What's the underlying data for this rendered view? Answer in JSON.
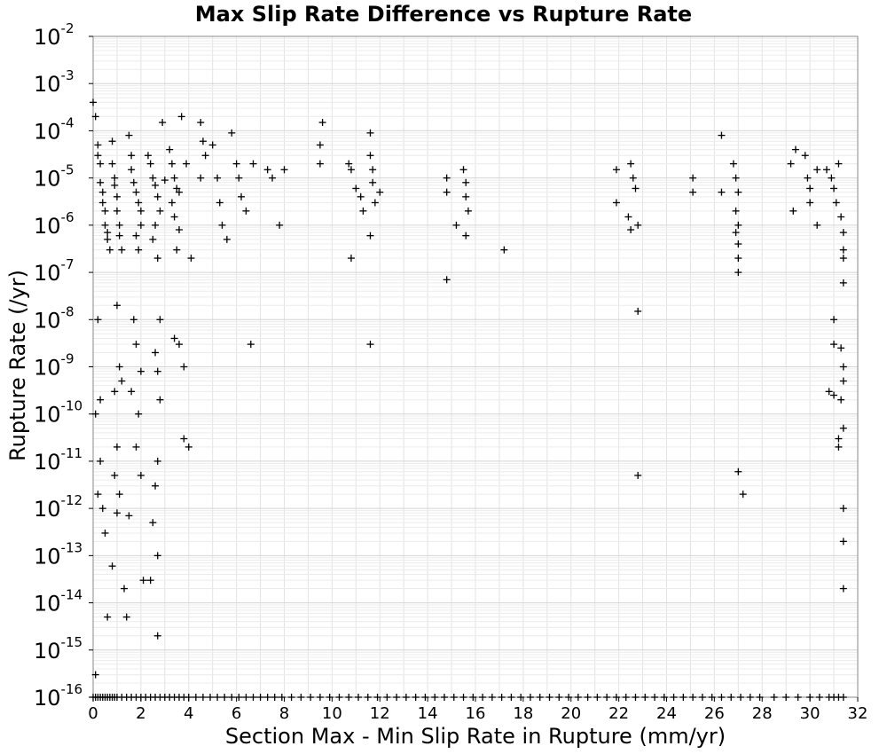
{
  "chart_data": {
    "type": "scatter",
    "title": "Max Slip Rate Difference vs Rupture Rate",
    "xlabel": "Section Max - Min Slip Rate in Rupture (mm/yr)",
    "ylabel": "Rupture Rate (/yr)",
    "xlim": [
      0,
      32
    ],
    "ylim": [
      1e-16,
      0.01
    ],
    "yscale": "log",
    "grid": true,
    "marker": "+",
    "marker_color": "#000000",
    "x_ticks": [
      "0",
      "2",
      "4",
      "6",
      "8",
      "10",
      "12",
      "14",
      "16",
      "18",
      "20",
      "22",
      "24",
      "26",
      "28",
      "30",
      "32"
    ],
    "y_ticks": [
      {
        "base": "10",
        "exp": "-16"
      },
      {
        "base": "10",
        "exp": "-15"
      },
      {
        "base": "10",
        "exp": "-14"
      },
      {
        "base": "10",
        "exp": "-13"
      },
      {
        "base": "10",
        "exp": "-12"
      },
      {
        "base": "10",
        "exp": "-11"
      },
      {
        "base": "10",
        "exp": "-10"
      },
      {
        "base": "10",
        "exp": "-9"
      },
      {
        "base": "10",
        "exp": "-8"
      },
      {
        "base": "10",
        "exp": "-7"
      },
      {
        "base": "10",
        "exp": "-6"
      },
      {
        "base": "10",
        "exp": "-5"
      },
      {
        "base": "10",
        "exp": "-4"
      },
      {
        "base": "10",
        "exp": "-3"
      },
      {
        "base": "10",
        "exp": "-2"
      }
    ],
    "points": [
      [
        0.0,
        0.0004
      ],
      [
        0.1,
        0.0002
      ],
      [
        0.1,
        1e-10
      ],
      [
        0.2,
        5e-05
      ],
      [
        0.2,
        3e-05
      ],
      [
        0.3,
        2e-05
      ],
      [
        0.3,
        8e-06
      ],
      [
        0.4,
        5e-06
      ],
      [
        0.4,
        3e-06
      ],
      [
        0.5,
        2e-06
      ],
      [
        0.5,
        1e-06
      ],
      [
        0.6,
        7e-07
      ],
      [
        0.6,
        5e-07
      ],
      [
        0.7,
        3e-07
      ],
      [
        0.2,
        1e-08
      ],
      [
        0.3,
        2e-10
      ],
      [
        0.3,
        1e-11
      ],
      [
        0.2,
        2e-12
      ],
      [
        0.4,
        1e-12
      ],
      [
        0.5,
        3e-13
      ],
      [
        0.6,
        5e-15
      ],
      [
        0.1,
        3e-16
      ],
      [
        0.8,
        6e-05
      ],
      [
        0.8,
        2e-05
      ],
      [
        0.9,
        1e-05
      ],
      [
        0.9,
        7e-06
      ],
      [
        1.0,
        4e-06
      ],
      [
        1.0,
        2e-06
      ],
      [
        1.1,
        1e-06
      ],
      [
        1.1,
        6e-07
      ],
      [
        1.2,
        3e-07
      ],
      [
        1.0,
        2e-08
      ],
      [
        1.1,
        1e-09
      ],
      [
        1.2,
        5e-10
      ],
      [
        0.9,
        3e-10
      ],
      [
        1.0,
        2e-11
      ],
      [
        0.9,
        5e-12
      ],
      [
        1.1,
        2e-12
      ],
      [
        1.0,
        8e-13
      ],
      [
        0.8,
        6e-14
      ],
      [
        1.3,
        2e-14
      ],
      [
        1.4,
        5e-15
      ],
      [
        1.5,
        8e-05
      ],
      [
        1.6,
        3e-05
      ],
      [
        1.6,
        1.5e-05
      ],
      [
        1.7,
        8e-06
      ],
      [
        1.8,
        5e-06
      ],
      [
        1.9,
        3e-06
      ],
      [
        2.0,
        2e-06
      ],
      [
        2.0,
        1e-06
      ],
      [
        1.8,
        6e-07
      ],
      [
        1.9,
        3e-07
      ],
      [
        1.7,
        1e-08
      ],
      [
        1.8,
        3e-09
      ],
      [
        2.0,
        8e-10
      ],
      [
        1.6,
        3e-10
      ],
      [
        1.9,
        1e-10
      ],
      [
        1.8,
        2e-11
      ],
      [
        2.0,
        5e-12
      ],
      [
        1.5,
        7e-13
      ],
      [
        2.1,
        3e-14
      ],
      [
        2.3,
        3e-05
      ],
      [
        2.4,
        2e-05
      ],
      [
        2.5,
        1e-05
      ],
      [
        2.6,
        7e-06
      ],
      [
        2.7,
        4e-06
      ],
      [
        2.8,
        2e-06
      ],
      [
        2.9,
        0.00015
      ],
      [
        3.0,
        9e-06
      ],
      [
        2.6,
        1e-06
      ],
      [
        2.5,
        5e-07
      ],
      [
        2.7,
        2e-07
      ],
      [
        2.8,
        1e-08
      ],
      [
        2.6,
        2e-09
      ],
      [
        2.7,
        8e-10
      ],
      [
        2.8,
        2e-10
      ],
      [
        2.7,
        1e-11
      ],
      [
        2.6,
        3e-12
      ],
      [
        2.5,
        5e-13
      ],
      [
        2.7,
        1e-13
      ],
      [
        2.4,
        3e-14
      ],
      [
        2.7,
        2e-15
      ],
      [
        3.2,
        4e-05
      ],
      [
        3.3,
        2e-05
      ],
      [
        3.4,
        1e-05
      ],
      [
        3.5,
        6e-06
      ],
      [
        3.6,
        5e-06
      ],
      [
        3.3,
        3e-06
      ],
      [
        3.4,
        1.5e-06
      ],
      [
        3.6,
        8e-07
      ],
      [
        3.5,
        3e-07
      ],
      [
        3.4,
        4e-09
      ],
      [
        3.6,
        3e-09
      ],
      [
        3.8,
        1e-09
      ],
      [
        3.8,
        3e-11
      ],
      [
        4.0,
        2e-11
      ],
      [
        4.1,
        2e-07
      ],
      [
        3.9,
        2e-05
      ],
      [
        3.7,
        0.0002
      ],
      [
        4.5,
        0.00015
      ],
      [
        4.6,
        6e-05
      ],
      [
        4.7,
        3e-05
      ],
      [
        4.5,
        1e-05
      ],
      [
        5.0,
        5e-05
      ],
      [
        5.2,
        1e-05
      ],
      [
        5.3,
        3e-06
      ],
      [
        5.4,
        1e-06
      ],
      [
        5.6,
        5e-07
      ],
      [
        5.8,
        9e-05
      ],
      [
        6.0,
        2e-05
      ],
      [
        6.1,
        1e-05
      ],
      [
        6.2,
        4e-06
      ],
      [
        6.4,
        2e-06
      ],
      [
        6.6,
        3e-09
      ],
      [
        6.7,
        2e-05
      ],
      [
        7.3,
        1.5e-05
      ],
      [
        7.5,
        1e-05
      ],
      [
        7.8,
        1e-06
      ],
      [
        8.0,
        1.5e-05
      ],
      [
        9.6,
        0.00015
      ],
      [
        9.5,
        5e-05
      ],
      [
        9.5,
        2e-05
      ],
      [
        10.7,
        2e-05
      ],
      [
        10.8,
        1.5e-05
      ],
      [
        11.0,
        6e-06
      ],
      [
        11.2,
        4e-06
      ],
      [
        11.3,
        2e-06
      ],
      [
        10.8,
        2e-07
      ],
      [
        11.6,
        9e-05
      ],
      [
        11.6,
        3e-05
      ],
      [
        11.7,
        1.5e-05
      ],
      [
        11.7,
        8e-06
      ],
      [
        11.8,
        3e-06
      ],
      [
        11.6,
        6e-07
      ],
      [
        11.6,
        3e-09
      ],
      [
        12.0,
        5e-06
      ],
      [
        14.8,
        1e-05
      ],
      [
        14.8,
        5e-06
      ],
      [
        14.8,
        7e-08
      ],
      [
        15.2,
        1e-06
      ],
      [
        15.5,
        1.5e-05
      ],
      [
        15.6,
        8e-06
      ],
      [
        15.6,
        4e-06
      ],
      [
        15.7,
        2e-06
      ],
      [
        15.6,
        6e-07
      ],
      [
        17.2,
        3e-07
      ],
      [
        21.9,
        1.5e-05
      ],
      [
        21.9,
        3e-06
      ],
      [
        22.5,
        2e-05
      ],
      [
        22.6,
        1e-05
      ],
      [
        22.7,
        6e-06
      ],
      [
        22.4,
        1.5e-06
      ],
      [
        22.5,
        8e-07
      ],
      [
        22.8,
        1e-06
      ],
      [
        22.8,
        1.5e-08
      ],
      [
        22.8,
        5e-12
      ],
      [
        25.1,
        1e-05
      ],
      [
        25.1,
        5e-06
      ],
      [
        26.3,
        8e-05
      ],
      [
        26.3,
        5e-06
      ],
      [
        26.8,
        2e-05
      ],
      [
        26.9,
        1e-05
      ],
      [
        27.0,
        5e-06
      ],
      [
        26.9,
        2e-06
      ],
      [
        27.0,
        1e-06
      ],
      [
        26.9,
        7e-07
      ],
      [
        27.0,
        4e-07
      ],
      [
        27.0,
        2e-07
      ],
      [
        27.0,
        1e-07
      ],
      [
        27.0,
        6e-12
      ],
      [
        27.2,
        2e-12
      ],
      [
        29.2,
        2e-05
      ],
      [
        29.4,
        4e-05
      ],
      [
        29.3,
        2e-06
      ],
      [
        29.8,
        3e-05
      ],
      [
        29.9,
        1e-05
      ],
      [
        30.0,
        6e-06
      ],
      [
        30.0,
        3e-06
      ],
      [
        30.3,
        1.5e-05
      ],
      [
        30.3,
        1e-06
      ],
      [
        30.7,
        1.5e-05
      ],
      [
        30.9,
        1e-05
      ],
      [
        31.0,
        6e-06
      ],
      [
        31.1,
        3e-06
      ],
      [
        31.2,
        2e-05
      ],
      [
        31.3,
        1.5e-06
      ],
      [
        31.4,
        7e-07
      ],
      [
        31.4,
        3e-07
      ],
      [
        31.4,
        2e-07
      ],
      [
        31.4,
        6e-08
      ],
      [
        31.0,
        1e-08
      ],
      [
        31.0,
        3e-09
      ],
      [
        31.3,
        2.5e-09
      ],
      [
        31.4,
        1e-09
      ],
      [
        31.4,
        5e-10
      ],
      [
        30.8,
        3e-10
      ],
      [
        31.0,
        2.5e-10
      ],
      [
        31.3,
        2e-10
      ],
      [
        31.4,
        5e-11
      ],
      [
        31.2,
        3e-11
      ],
      [
        31.2,
        2e-11
      ],
      [
        31.4,
        1e-12
      ],
      [
        31.4,
        2e-13
      ],
      [
        31.4,
        2e-14
      ]
    ],
    "floor_points_x": [
      0.0,
      0.1,
      0.2,
      0.3,
      0.4,
      0.5,
      0.6,
      0.7,
      0.8,
      0.9,
      1.0,
      1.2,
      1.4,
      1.6,
      1.8,
      2.0,
      2.2,
      2.4,
      2.6,
      2.8,
      3.0,
      3.2,
      3.4,
      3.6,
      3.8,
      4.0,
      4.3,
      4.6,
      4.9,
      5.2,
      5.5,
      5.8,
      6.1,
      6.4,
      6.7,
      7.0,
      7.3,
      7.6,
      7.9,
      8.3,
      8.7,
      9.1,
      9.5,
      9.9,
      10.3,
      10.7,
      11.1,
      11.5,
      11.9,
      12.3,
      12.7,
      13.1,
      13.5,
      13.9,
      14.3,
      14.7,
      15.1,
      15.5,
      15.9,
      16.3,
      16.7,
      17.1,
      17.5,
      17.9,
      18.3,
      18.7,
      19.1,
      19.5,
      19.9,
      20.3,
      20.7,
      21.1,
      21.5,
      21.9,
      22.3,
      22.7,
      23.1,
      23.5,
      23.9,
      24.3,
      24.7,
      25.1,
      25.5,
      25.9,
      26.3,
      26.7,
      27.1,
      27.5,
      27.9,
      28.5,
      29.0,
      29.5,
      30.0,
      30.4,
      30.8,
      31.0,
      31.2,
      31.4
    ]
  }
}
